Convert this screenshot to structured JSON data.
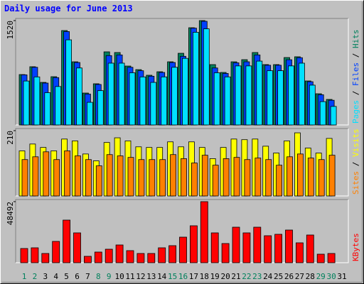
{
  "chart_data": [
    {
      "type": "bar",
      "title": "Daily usage for June 2013",
      "title_color": "#0000ff",
      "legend_separator": " / ",
      "ylim": [
        0,
        1520
      ],
      "yticks": [
        1520
      ],
      "series": [
        {
          "name": "Hits",
          "color": "#00805c",
          "values": [
            734,
            848,
            620,
            703,
            1375,
            920,
            465,
            600,
            1065,
            1055,
            858,
            806,
            724,
            775,
            920,
            1044,
            1416,
            1520,
            879,
            765,
            920,
            951,
            1055,
            879,
            879,
            982,
            993,
            641,
            455,
            372,
            null
          ]
        },
        {
          "name": "Files",
          "color": "#0040ff",
          "values": [
            730,
            840,
            610,
            690,
            1360,
            910,
            450,
            590,
            1010,
            1020,
            840,
            790,
            710,
            765,
            910,
            1000,
            1410,
            1510,
            830,
            750,
            905,
            920,
            1020,
            870,
            870,
            950,
            980,
            630,
            440,
            360,
            null
          ]
        },
        {
          "name": "Pages",
          "color": "#00e0ff",
          "values": [
            640,
            700,
            470,
            560,
            1240,
            830,
            330,
            500,
            900,
            900,
            760,
            700,
            620,
            700,
            840,
            970,
            1350,
            1400,
            760,
            700,
            860,
            860,
            930,
            790,
            790,
            860,
            900,
            580,
            340,
            270,
            null
          ]
        }
      ]
    },
    {
      "type": "bar",
      "legend_separator": " / ",
      "ylim": [
        0,
        210
      ],
      "yticks": [
        210
      ],
      "series": [
        {
          "name": "Visits",
          "color": "#ffff00",
          "values": [
            145,
            167,
            156,
            145,
            183,
            177,
            135,
            113,
            172,
            187,
            177,
            158,
            156,
            156,
            174,
            158,
            174,
            156,
            120,
            156,
            183,
            181,
            183,
            160,
            138,
            177,
            203,
            154,
            138,
            185,
            null
          ]
        },
        {
          "name": "Sites",
          "color": "#ff8000",
          "values": [
            117,
            126,
            142,
            117,
            145,
            129,
            117,
            97,
            133,
            129,
            124,
            117,
            117,
            117,
            133,
            120,
            106,
            131,
            99,
            120,
            124,
            117,
            122,
            117,
            99,
            126,
            135,
            122,
            117,
            131,
            null
          ]
        }
      ]
    },
    {
      "type": "bar",
      "ylim": [
        0,
        48492
      ],
      "yticks": [
        48492
      ],
      "categories": [
        "1",
        "2",
        "3",
        "4",
        "5",
        "6",
        "7",
        "8",
        "9",
        "10",
        "11",
        "12",
        "13",
        "14",
        "15",
        "16",
        "17",
        "18",
        "19",
        "20",
        "21",
        "22",
        "23",
        "24",
        "25",
        "26",
        "27",
        "28",
        "29",
        "30",
        "31"
      ],
      "category_colors": [
        "#00805c",
        "#00805c",
        "#000000",
        "#000000",
        "#000000",
        "#000000",
        "#000000",
        "#00805c",
        "#00805c",
        "#000000",
        "#000000",
        "#000000",
        "#000000",
        "#000000",
        "#00805c",
        "#00805c",
        "#000000",
        "#000000",
        "#000000",
        "#000000",
        "#000000",
        "#00805c",
        "#00805c",
        "#000000",
        "#000000",
        "#000000",
        "#000000",
        "#000000",
        "#00805c",
        "#00805c",
        "#000000"
      ],
      "series": [
        {
          "name": "KBytes",
          "color": "#ff0000",
          "values": [
            11280,
            11840,
            7330,
            16920,
            33840,
            23690,
            5075,
            8460,
            10715,
            14100,
            9590,
            7330,
            7330,
            11840,
            13540,
            20300,
            29330,
            48492,
            23690,
            15230,
            28200,
            23690,
            28200,
            21430,
            22560,
            25940,
            15790,
            22000,
            6770,
            7330,
            null
          ]
        }
      ]
    }
  ]
}
